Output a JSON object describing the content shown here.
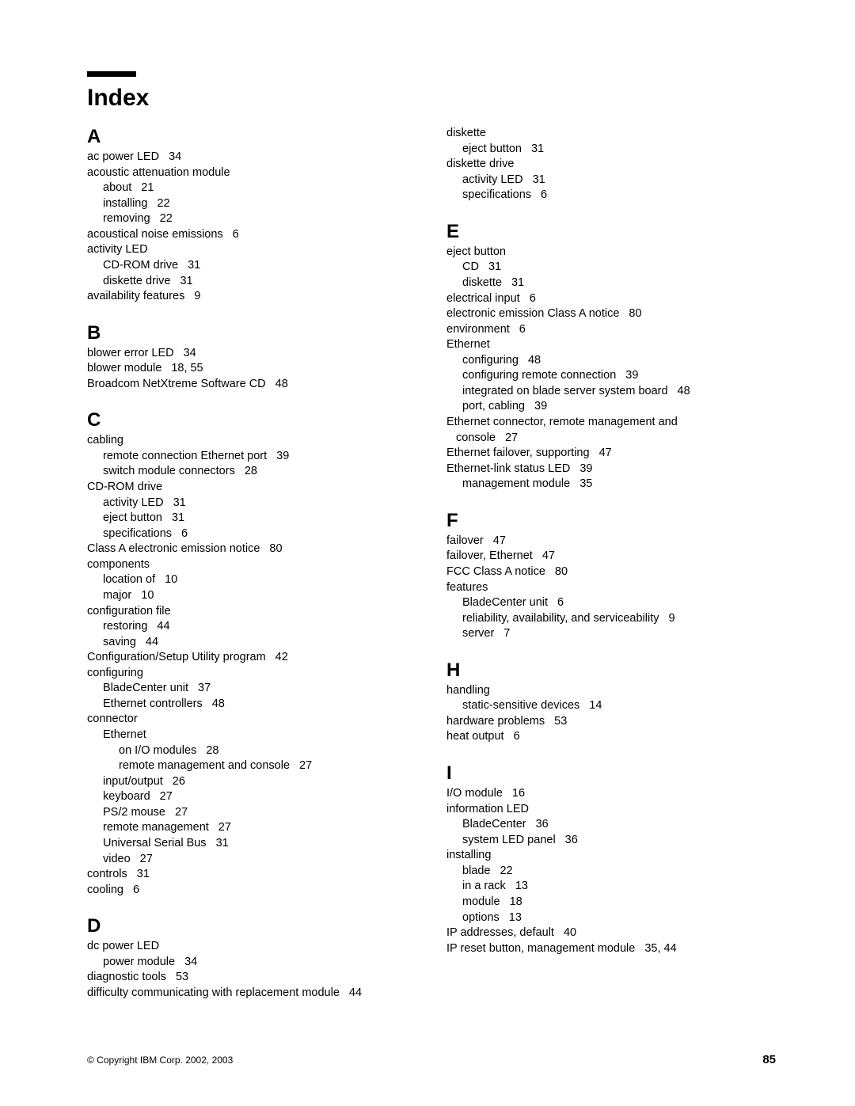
{
  "title": "Index",
  "copyright": "© Copyright IBM Corp. 2002, 2003",
  "pageNumber": "85",
  "columns": [
    [
      {
        "letter": "A",
        "entries": [
          {
            "text": "ac power LED",
            "pages": "34",
            "indent": 0
          },
          {
            "text": "acoustic attenuation module",
            "pages": "",
            "indent": 0
          },
          {
            "text": "about",
            "pages": "21",
            "indent": 1
          },
          {
            "text": "installing",
            "pages": "22",
            "indent": 1
          },
          {
            "text": "removing",
            "pages": "22",
            "indent": 1
          },
          {
            "text": "acoustical noise emissions",
            "pages": "6",
            "indent": 0
          },
          {
            "text": "activity LED",
            "pages": "",
            "indent": 0
          },
          {
            "text": "CD-ROM drive",
            "pages": "31",
            "indent": 1
          },
          {
            "text": "diskette drive",
            "pages": "31",
            "indent": 1
          },
          {
            "text": "availability features",
            "pages": "9",
            "indent": 0
          }
        ]
      },
      {
        "letter": "B",
        "entries": [
          {
            "text": "blower error LED",
            "pages": "34",
            "indent": 0
          },
          {
            "text": "blower module",
            "pages": "18, 55",
            "indent": 0
          },
          {
            "text": "Broadcom NetXtreme Software CD",
            "pages": "48",
            "indent": 0
          }
        ]
      },
      {
        "letter": "C",
        "entries": [
          {
            "text": "cabling",
            "pages": "",
            "indent": 0
          },
          {
            "text": "remote connection Ethernet port",
            "pages": "39",
            "indent": 1
          },
          {
            "text": "switch module connectors",
            "pages": "28",
            "indent": 1
          },
          {
            "text": "CD-ROM drive",
            "pages": "",
            "indent": 0
          },
          {
            "text": "activity LED",
            "pages": "31",
            "indent": 1
          },
          {
            "text": "eject button",
            "pages": "31",
            "indent": 1
          },
          {
            "text": "specifications",
            "pages": "6",
            "indent": 1
          },
          {
            "text": "Class A electronic emission notice",
            "pages": "80",
            "indent": 0
          },
          {
            "text": "components",
            "pages": "",
            "indent": 0
          },
          {
            "text": "location of",
            "pages": "10",
            "indent": 1
          },
          {
            "text": "major",
            "pages": "10",
            "indent": 1
          },
          {
            "text": "configuration file",
            "pages": "",
            "indent": 0
          },
          {
            "text": "restoring",
            "pages": "44",
            "indent": 1
          },
          {
            "text": "saving",
            "pages": "44",
            "indent": 1
          },
          {
            "text": "Configuration/Setup Utility program",
            "pages": "42",
            "indent": 0
          },
          {
            "text": "configuring",
            "pages": "",
            "indent": 0
          },
          {
            "text": "BladeCenter unit",
            "pages": "37",
            "indent": 1
          },
          {
            "text": "Ethernet controllers",
            "pages": "48",
            "indent": 1
          },
          {
            "text": "connector",
            "pages": "",
            "indent": 0
          },
          {
            "text": "Ethernet",
            "pages": "",
            "indent": 1
          },
          {
            "text": "on I/O modules",
            "pages": "28",
            "indent": 2
          },
          {
            "text": "remote management and console",
            "pages": "27",
            "indent": 2
          },
          {
            "text": "input/output",
            "pages": "26",
            "indent": 1
          },
          {
            "text": "keyboard",
            "pages": "27",
            "indent": 1
          },
          {
            "text": "PS/2 mouse",
            "pages": "27",
            "indent": 1
          },
          {
            "text": "remote management",
            "pages": "27",
            "indent": 1
          },
          {
            "text": "Universal Serial Bus",
            "pages": "31",
            "indent": 1
          },
          {
            "text": "video",
            "pages": "27",
            "indent": 1
          },
          {
            "text": "controls",
            "pages": "31",
            "indent": 0
          },
          {
            "text": "cooling",
            "pages": "6",
            "indent": 0
          }
        ]
      },
      {
        "letter": "D",
        "entries": [
          {
            "text": "dc power LED",
            "pages": "",
            "indent": 0
          },
          {
            "text": "power module",
            "pages": "34",
            "indent": 1
          },
          {
            "text": "diagnostic tools",
            "pages": "53",
            "indent": 0
          },
          {
            "text": "difficulty communicating with replacement module",
            "pages": "44",
            "indent": 0
          }
        ]
      }
    ],
    [
      {
        "letter": "",
        "entries": [
          {
            "text": "diskette",
            "pages": "",
            "indent": 0
          },
          {
            "text": "eject button",
            "pages": "31",
            "indent": 1
          },
          {
            "text": "diskette drive",
            "pages": "",
            "indent": 0
          },
          {
            "text": "activity LED",
            "pages": "31",
            "indent": 1
          },
          {
            "text": "specifications",
            "pages": "6",
            "indent": 1
          }
        ]
      },
      {
        "letter": "E",
        "entries": [
          {
            "text": "eject button",
            "pages": "",
            "indent": 0
          },
          {
            "text": "CD",
            "pages": "31",
            "indent": 1
          },
          {
            "text": "diskette",
            "pages": "31",
            "indent": 1
          },
          {
            "text": "electrical input",
            "pages": "6",
            "indent": 0
          },
          {
            "text": "electronic emission Class A notice",
            "pages": "80",
            "indent": 0
          },
          {
            "text": "environment",
            "pages": "6",
            "indent": 0
          },
          {
            "text": "Ethernet",
            "pages": "",
            "indent": 0
          },
          {
            "text": "configuring",
            "pages": "48",
            "indent": 1
          },
          {
            "text": "configuring remote connection",
            "pages": "39",
            "indent": 1
          },
          {
            "text": "integrated on blade server system board",
            "pages": "48",
            "indent": 1
          },
          {
            "text": "port, cabling",
            "pages": "39",
            "indent": 1
          },
          {
            "text": "Ethernet connector, remote management and",
            "pages": "",
            "indent": 0
          },
          {
            "text": "console",
            "pages": "27",
            "indent": 0,
            "continuation": true
          },
          {
            "text": "Ethernet failover, supporting",
            "pages": "47",
            "indent": 0
          },
          {
            "text": "Ethernet-link status LED",
            "pages": "39",
            "indent": 0
          },
          {
            "text": "management module",
            "pages": "35",
            "indent": 1
          }
        ]
      },
      {
        "letter": "F",
        "entries": [
          {
            "text": "failover",
            "pages": "47",
            "indent": 0
          },
          {
            "text": "failover, Ethernet",
            "pages": "47",
            "indent": 0
          },
          {
            "text": "FCC Class A notice",
            "pages": "80",
            "indent": 0
          },
          {
            "text": "features",
            "pages": "",
            "indent": 0
          },
          {
            "text": "BladeCenter unit",
            "pages": "6",
            "indent": 1
          },
          {
            "text": "reliability, availability, and serviceability",
            "pages": "9",
            "indent": 1
          },
          {
            "text": "server",
            "pages": "7",
            "indent": 1
          }
        ]
      },
      {
        "letter": "H",
        "entries": [
          {
            "text": "handling",
            "pages": "",
            "indent": 0
          },
          {
            "text": "static-sensitive devices",
            "pages": "14",
            "indent": 1
          },
          {
            "text": "hardware problems",
            "pages": "53",
            "indent": 0
          },
          {
            "text": "heat output",
            "pages": "6",
            "indent": 0
          }
        ]
      },
      {
        "letter": "I",
        "entries": [
          {
            "text": "I/O module",
            "pages": "16",
            "indent": 0
          },
          {
            "text": "information LED",
            "pages": "",
            "indent": 0
          },
          {
            "text": "BladeCenter",
            "pages": "36",
            "indent": 1
          },
          {
            "text": "system LED panel",
            "pages": "36",
            "indent": 1
          },
          {
            "text": "installing",
            "pages": "",
            "indent": 0
          },
          {
            "text": "blade",
            "pages": "22",
            "indent": 1
          },
          {
            "text": "in a rack",
            "pages": "13",
            "indent": 1
          },
          {
            "text": "module",
            "pages": "18",
            "indent": 1
          },
          {
            "text": "options",
            "pages": "13",
            "indent": 1
          },
          {
            "text": "IP addresses, default",
            "pages": "40",
            "indent": 0
          },
          {
            "text": "IP reset button, management module",
            "pages": "35, 44",
            "indent": 0
          }
        ]
      }
    ]
  ]
}
